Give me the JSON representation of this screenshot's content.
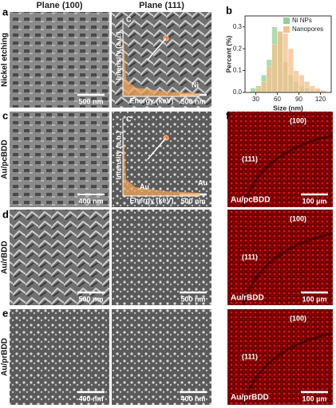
{
  "columns": [
    "Plane (100)",
    "Plane (111)"
  ],
  "panel_letters": [
    "a",
    "b",
    "c",
    "d",
    "e",
    "f"
  ],
  "rows": [
    {
      "label": "Nickel etching",
      "scale_bars": [
        "500 nm",
        "500 nm"
      ]
    },
    {
      "label": "Au/pcBDD",
      "scale_bars": [
        "400 nm",
        "500 nm"
      ]
    },
    {
      "label": "Au/rBDD",
      "scale_bars": [
        "500 nm",
        "500 nm"
      ]
    },
    {
      "label": "Au/prBDD",
      "scale_bars": [
        "400 nm",
        "400 nm"
      ]
    }
  ],
  "eds_insets": [
    {
      "y_label": "Intensity (a.u.)",
      "x_label": "Energy (keV)",
      "peaks": [
        "C",
        "Ni"
      ]
    },
    {
      "y_label": "Intensity (a.u.)",
      "x_label": "Energy (keV)",
      "peaks": [
        "C",
        "Au",
        "Au"
      ]
    }
  ],
  "maps": [
    {
      "label": "Au/pcBDD",
      "regions": [
        "(100)",
        "(111)"
      ],
      "scale_bar": "100 µm"
    },
    {
      "label": "Au/rBDD",
      "regions": [
        "(100)",
        "(111)"
      ],
      "scale_bar": "100 µm"
    },
    {
      "label": "Au/prBDD",
      "regions": [
        "(100)",
        "(111)"
      ],
      "scale_bar": "100 µm"
    }
  ],
  "chart_data": {
    "type": "histogram",
    "x_label": "Size (nm)",
    "y_label": "Percent (%)",
    "bins": [
      22.5,
      30,
      37.5,
      45,
      52.5,
      60,
      67.5,
      75,
      82.5,
      90,
      97.5,
      105,
      112.5,
      120,
      127.5
    ],
    "series": [
      {
        "name": "Ni NPs",
        "color": "#8fd18f",
        "values": [
          0.02,
          0.03,
          0.08,
          0.15,
          0.3,
          0.28,
          0.14,
          0.08,
          0.05,
          0.03,
          0.02,
          0.01,
          0.01,
          0.005
        ]
      },
      {
        "name": "Nanopores",
        "color": "#f5c08a",
        "values": [
          0,
          0.02,
          0.05,
          0.12,
          0.22,
          0.28,
          0.27,
          0.2,
          0.1,
          0.08,
          0.05,
          0.03,
          0.02,
          0.01
        ]
      }
    ],
    "xlim": [
      15,
      135
    ],
    "ylim": [
      0,
      0.35
    ],
    "xticks": [
      30,
      60,
      90,
      120
    ],
    "yticks": [
      {
        "value": 0,
        "label": "0.0"
      },
      0.1,
      0.2,
      0.3
    ],
    "legend": "upper right"
  }
}
